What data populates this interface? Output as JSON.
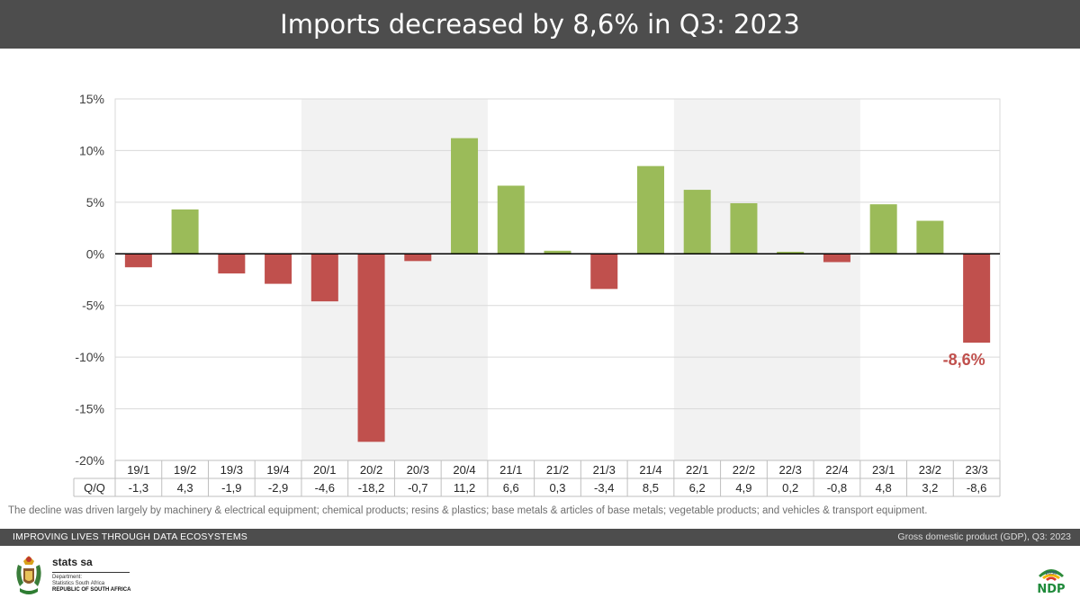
{
  "header": {
    "title": "Imports decreased by 8,6% in Q3: 2023"
  },
  "chart_data": {
    "type": "bar",
    "title": "Imports decreased by 8,6% in Q3: 2023",
    "xlabel": "",
    "ylabel": "",
    "ylim": [
      -20,
      15
    ],
    "yticks": [
      15,
      10,
      5,
      0,
      -5,
      -10,
      -15,
      -20
    ],
    "ytick_labels": [
      "15%",
      "10%",
      "5%",
      "0%",
      "-5%",
      "-10%",
      "-15%",
      "-20%"
    ],
    "categories": [
      "19/1",
      "19/2",
      "19/3",
      "19/4",
      "20/1",
      "20/2",
      "20/3",
      "20/4",
      "21/1",
      "21/2",
      "21/3",
      "21/4",
      "22/1",
      "22/2",
      "22/3",
      "22/4",
      "23/1",
      "23/2",
      "23/3"
    ],
    "row_label": "Q/Q",
    "value_labels": [
      "-1,3",
      "4,3",
      "-1,9",
      "-2,9",
      "-4,6",
      "-18,2",
      "-0,7",
      "11,2",
      "6,6",
      "0,3",
      "-3,4",
      "8,5",
      "6,2",
      "4,9",
      "0,2",
      "-0,8",
      "4,8",
      "3,2",
      "-8,6"
    ],
    "series": [
      {
        "values": [
          -1.3,
          4.3,
          -1.9,
          -2.9,
          -4.6,
          -18.2,
          -0.7,
          11.2,
          6.6,
          0.3,
          -3.4,
          8.5,
          6.2,
          4.9,
          0.2,
          -0.8,
          4.8,
          3.2,
          -8.6
        ]
      }
    ],
    "shaded_years": [
      "2020",
      "2022"
    ],
    "colors": {
      "positive": "#9bbb59",
      "negative": "#c0504d",
      "shade": "#f2f2f2",
      "callout": "#c0504d"
    },
    "callout": {
      "category": "23/3",
      "text": "-8,6%"
    },
    "grid": true,
    "legend": "none"
  },
  "footnote": "The decline was driven largely by machinery & electrical equipment; chemical products; resins & plastics; base metals & articles of base metals; vegetable products; and vehicles & transport equipment.",
  "footer": {
    "left": "IMPROVING LIVES THROUGH DATA ECOSYSTEMS",
    "right": "Gross domestic product (GDP), Q3: 2023"
  },
  "logo": {
    "name": "stats sa",
    "line1": "Department:",
    "line2": "Statistics South Africa",
    "line3": "REPUBLIC OF SOUTH AFRICA",
    "icon": "coat-of-arms-icon"
  },
  "ndp_logo": {
    "text": "NDP",
    "year": "2030",
    "icon": "ndp-logo-icon"
  }
}
